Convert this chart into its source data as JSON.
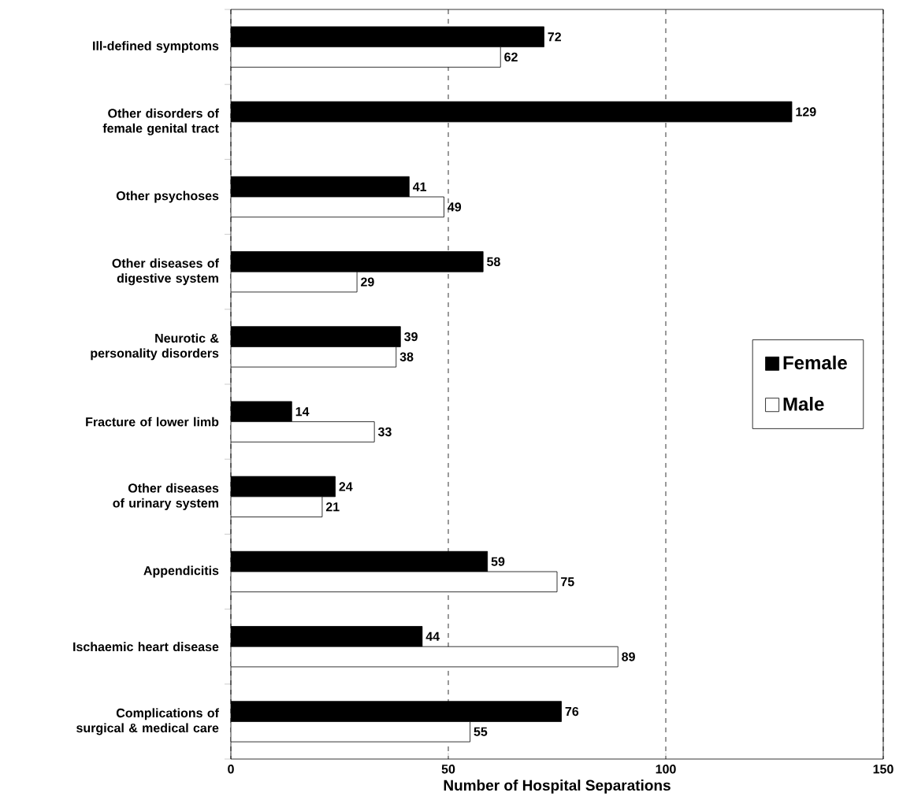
{
  "chart_data": {
    "type": "bar",
    "orientation": "horizontal",
    "xlabel": "Number of Hospital Separations",
    "categories": [
      "Ill-defined symptoms",
      "Other disorders of female genital tract",
      "Other psychoses",
      "Other diseases of digestive system",
      "Neurotic & personality disorders",
      "Fracture of lower limb",
      "Other diseases of urinary system",
      "Appendicitis",
      "Ischaemic heart disease",
      "Complications of surgical & medical care"
    ],
    "series": [
      {
        "name": "Female",
        "color": "#000000",
        "values": [
          72,
          129,
          41,
          58,
          39,
          14,
          24,
          59,
          44,
          76
        ]
      },
      {
        "name": "Male",
        "color": "#ffffff",
        "values": [
          62,
          null,
          49,
          29,
          38,
          33,
          21,
          75,
          89,
          55
        ]
      }
    ],
    "xlim": [
      0,
      150
    ],
    "xticks": [
      0,
      50,
      100,
      150
    ],
    "grid": "x",
    "legend": "right",
    "data_labels": true
  }
}
